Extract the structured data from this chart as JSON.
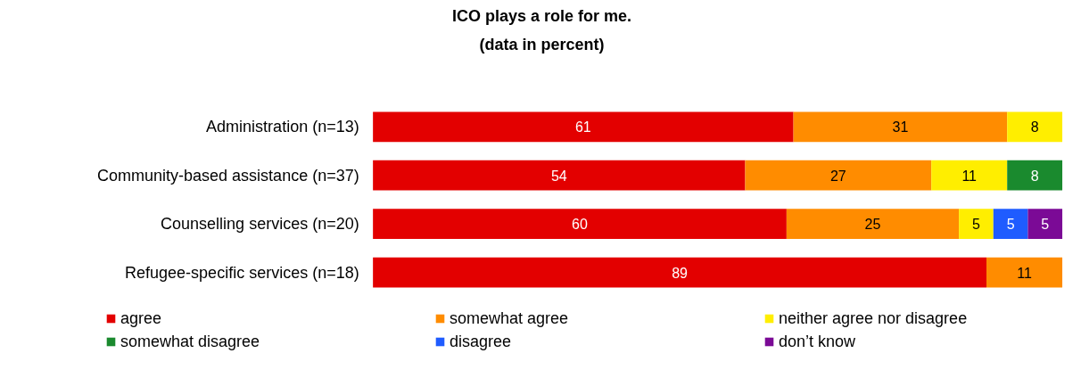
{
  "chart_data": {
    "type": "bar",
    "orientation": "horizontal",
    "stacked": true,
    "data_labels": true,
    "legend": "bottom",
    "grid": false,
    "title": "ICO plays a role for me.",
    "subtitle": "(data in percent)",
    "categories": [
      "Administration (n=13)",
      "Community-based assistance (n=37)",
      "Counselling services (n=20)",
      "Refugee-specific services (n=18)"
    ],
    "series": [
      {
        "name": "agree",
        "color": "#e30000",
        "values": [
          61,
          54,
          60,
          89
        ]
      },
      {
        "name": "somewhat agree",
        "color": "#ff8c00",
        "values": [
          31,
          27,
          25,
          11
        ]
      },
      {
        "name": "neither agree nor disagree",
        "color": "#ffee00",
        "values": [
          8,
          11,
          5,
          null
        ]
      },
      {
        "name": "somewhat disagree",
        "color": "#1a8a2e",
        "values": [
          null,
          8,
          null,
          null
        ]
      },
      {
        "name": "disagree",
        "color": "#1f5cff",
        "values": [
          null,
          null,
          5,
          null
        ]
      },
      {
        "name": "don’t know",
        "color": "#7b0a96",
        "values": [
          null,
          null,
          5,
          null
        ]
      }
    ]
  }
}
